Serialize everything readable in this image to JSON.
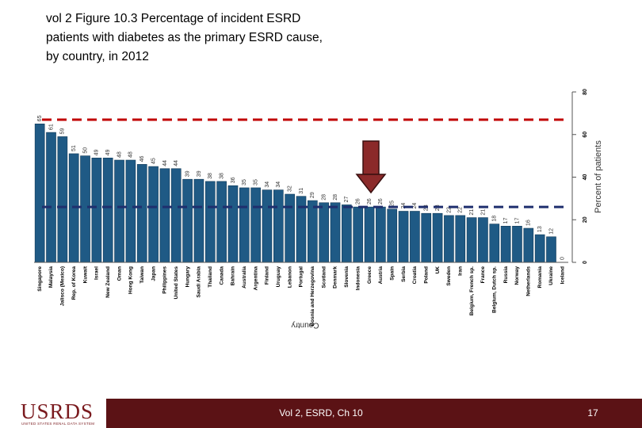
{
  "chart_data": {
    "type": "bar",
    "title": "vol 2 Figure 10.3 Percentage of incident ESRD\npatients with diabetes as the primary   ESRD cause,\nby country, in 2012",
    "xlabel": "Country",
    "ylabel": "Percent of patients",
    "categories": [
      "Singapore",
      "Malaysia",
      "Jalisco (Mexico)",
      "Rep. of Korea",
      "Kuwait",
      "Israel",
      "New Zealand",
      "Oman",
      "Hong Kong",
      "Taiwan",
      "Japan",
      "Philippines",
      "United States",
      "Hungary",
      "Saudi Arabia",
      "Thailand",
      "Canada",
      "Bahrain",
      "Australia",
      "Argentina",
      "Finland",
      "Uruguay",
      "Lebanon",
      "Portugal",
      "Bosnia and Herzegovina",
      "Scotland",
      "Denmark",
      "Slovenia",
      "Indonesia",
      "Greece",
      "Austria",
      "Spain",
      "Serbia",
      "Croatia",
      "Poland",
      "UK",
      "Sweden",
      "Iran",
      "Belgium, French sp.",
      "France",
      "Belgium, Dutch sp.",
      "Russia",
      "Norway",
      "Netherlands",
      "Romania",
      "Ukraine",
      "Iceland"
    ],
    "values": [
      65,
      61,
      59,
      51,
      50,
      49,
      49,
      48,
      48,
      46,
      45,
      44,
      44,
      39,
      39,
      38,
      38,
      36,
      35,
      35,
      34,
      34,
      32,
      31,
      29,
      28,
      28,
      27,
      26,
      26,
      26,
      25,
      24,
      24,
      23,
      23,
      22,
      22,
      21,
      21,
      18,
      17,
      17,
      16,
      13,
      12,
      0
    ],
    "color": "#1f5a85",
    "ylim": [
      0,
      80
    ],
    "yticks": [
      0,
      20,
      40,
      60,
      80
    ],
    "reference_lines": [
      {
        "value": 67,
        "color": "#c00000"
      },
      {
        "value": 26,
        "color": "#1f2f6e"
      }
    ]
  },
  "footer": {
    "logo": "USRDS",
    "logo_sub": "UNITED STATES RENAL DATA SYSTEM",
    "center": "Vol 2, ESRD, Ch 10",
    "page": "17"
  }
}
